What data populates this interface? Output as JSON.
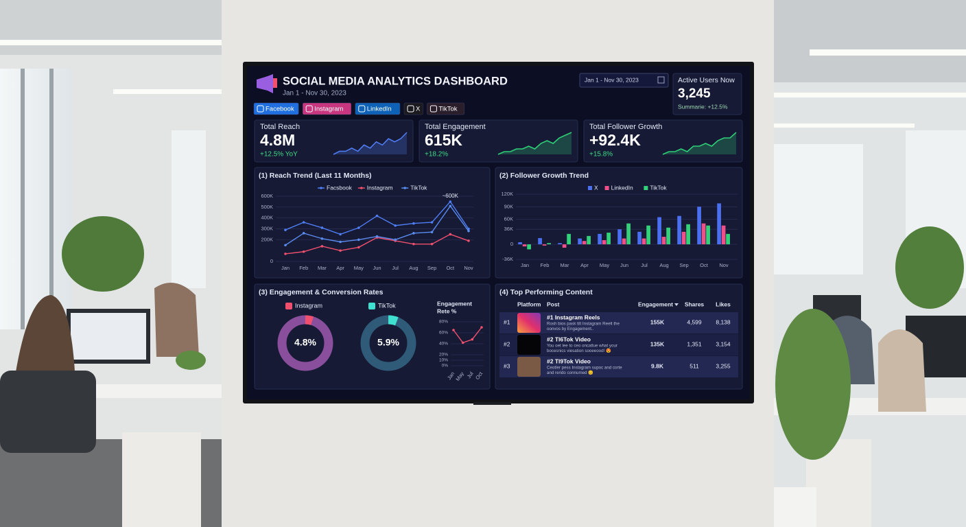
{
  "header": {
    "title": "SOCIAL MEDIA ANALYTICS DASHBOARD",
    "subtitle": "Jan 1 - Nov 30, 2023",
    "date_range": "Jan 1 - Nov 30, 2023",
    "platforms": [
      "Facebook",
      "Instagram",
      "LinkedIn",
      "X",
      "TikTok"
    ],
    "platform_colors": [
      "#1f6fe0",
      "#c8367f",
      "#0d62b8",
      "#1a1a1f",
      "#2a1e2a"
    ]
  },
  "active_users": {
    "label": "Active Users Now",
    "value": "3,245",
    "summary": "Summarie: +12.5%"
  },
  "kpis": [
    {
      "label": "Total Reach",
      "value": "4.8M",
      "change": "+12.5% YoY",
      "color": "#4f7cf2",
      "trend": [
        2,
        3,
        3,
        4,
        3,
        5,
        4,
        6,
        5,
        7,
        6,
        7,
        9
      ]
    },
    {
      "label": "Total Engagement",
      "value": "615K",
      "change": "+18.2%",
      "color": "#2fcf78",
      "trend": [
        1,
        2,
        2,
        3,
        3,
        4,
        3,
        5,
        6,
        5,
        7,
        8,
        9
      ]
    },
    {
      "label": "Total Follower Growth",
      "value": "+92.4K",
      "change": "+15.8%",
      "color": "#2fcf78",
      "trend": [
        1,
        2,
        2,
        3,
        2,
        4,
        4,
        5,
        4,
        6,
        7,
        7,
        9
      ]
    }
  ],
  "chart_data": [
    {
      "type": "line",
      "title": "(1) Reach Trend (Last 11 Months)",
      "categories": [
        "Jan",
        "Feb",
        "Mar",
        "Apr",
        "May",
        "Jun",
        "Jul",
        "Aug",
        "Sep",
        "Oct",
        "Nov"
      ],
      "series": [
        {
          "name": "Facsbook",
          "color": "#4f7ef5",
          "values": [
            290000,
            360000,
            310000,
            250000,
            310000,
            420000,
            330000,
            350000,
            360000,
            550000,
            300000
          ]
        },
        {
          "name": "Instagram",
          "color": "#f0506e",
          "values": [
            70000,
            90000,
            140000,
            100000,
            130000,
            220000,
            190000,
            160000,
            160000,
            250000,
            190000
          ]
        },
        {
          "name": "TikTok",
          "color": "#5a8cf0",
          "values": [
            150000,
            260000,
            210000,
            180000,
            200000,
            230000,
            200000,
            260000,
            270000,
            510000,
            280000
          ]
        }
      ],
      "ylim": [
        0,
        600000
      ],
      "yticks": [
        0,
        {
          "value": 200000,
          "label": "200K"
        },
        {
          "value": 300000,
          "label": "300K"
        },
        {
          "value": 400000,
          "label": "400K"
        },
        {
          "value": 500000,
          "label": "500K"
        },
        {
          "value": 600000,
          "label": "600K"
        }
      ],
      "annotation": "~600K",
      "grid": true
    },
    {
      "type": "bar",
      "title": "(2) Follower Growth Trend",
      "categories": [
        "Jan",
        "Feb",
        "Mar",
        "Apr",
        "May",
        "Jun",
        "Jul",
        "Aug",
        "Sep",
        "Oct",
        "Nov"
      ],
      "series": [
        {
          "name": "X",
          "color": "#4a6ff0",
          "values": [
            5000,
            15000,
            3000,
            14000,
            25000,
            36000,
            30000,
            65000,
            68000,
            90000,
            98000
          ]
        },
        {
          "name": "LinkedIn",
          "color": "#f0508a",
          "values": [
            -5000,
            -3000,
            -8000,
            8000,
            10000,
            14000,
            14000,
            18000,
            30000,
            50000,
            45000
          ]
        },
        {
          "name": "TikTok",
          "color": "#33d17a",
          "values": [
            -12000,
            3000,
            25000,
            20000,
            28000,
            50000,
            45000,
            40000,
            48000,
            45000,
            25000
          ]
        }
      ],
      "ylim": [
        -36000,
        120000
      ],
      "yticks": [
        {
          "value": -36000,
          "label": "-36K"
        },
        0,
        {
          "value": 36000,
          "label": "36K"
        },
        {
          "value": 60000,
          "label": "60K"
        },
        {
          "value": 90000,
          "label": "90K"
        },
        {
          "value": 120000,
          "label": "120K"
        }
      ],
      "grid": true
    },
    {
      "type": "donut",
      "title": "(3) Engagement & Conversion Rates",
      "categories": [
        "Instagram",
        "TikTok"
      ],
      "values": [
        4.8,
        5.9
      ],
      "value_labels": [
        "4.8%",
        "5.9%"
      ],
      "colors": [
        "#f0506e",
        "#3fe0cf"
      ],
      "track_colors": [
        "#8a4f9c",
        "#2f5a78"
      ]
    },
    {
      "type": "line",
      "title_lines": [
        "Engagement",
        "Rete %"
      ],
      "categories": [
        "Jan",
        "May",
        "Jul",
        "Oct"
      ],
      "values": [
        65,
        42,
        48,
        70
      ],
      "color": "#f0506e",
      "ylim": [
        0,
        80
      ],
      "yticks": [
        {
          "value": 0,
          "label": "0%"
        },
        {
          "value": 10,
          "label": "10%"
        },
        {
          "value": 20,
          "label": "20%"
        },
        {
          "value": 40,
          "label": "40%"
        },
        {
          "value": 60,
          "label": "60%"
        },
        {
          "value": 80,
          "label": "80%"
        }
      ]
    }
  ],
  "table": {
    "title": "(4) Top Performing Content",
    "columns": [
      "Platform",
      "Post",
      "Engagement",
      "Shares",
      "Likes"
    ],
    "rows": [
      {
        "rank": "#1",
        "title": "#1 Instagram Reels",
        "desc": [
          "Rosh bios pask tilt Instagram Reelt the",
          "oonvos by Engagement.."
        ],
        "engagement": "155K",
        "shares": "4,599",
        "likes": "8,138"
      },
      {
        "rank": "#2",
        "title": "#2 Tl6Tok Video",
        "desc": [
          "You oet lee to ceo oncatlue what your",
          "bocesnics viesation sooeeood! 😍"
        ],
        "engagement": "135K",
        "shares": "1,351",
        "likes": "3,154"
      },
      {
        "rank": "#3",
        "title": "#2 Tl9Tok Video",
        "desc": [
          "Ceotler pess Instagram supoc and corte",
          "and rerido connumed 😊"
        ],
        "engagement": "9.8K",
        "shares": "511",
        "likes": "3,255"
      }
    ]
  }
}
